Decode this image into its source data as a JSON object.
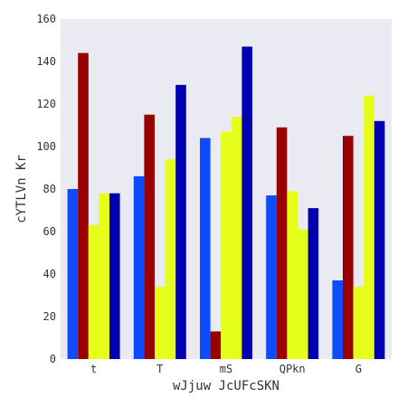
{
  "chart_data": {
    "type": "bar",
    "title": "",
    "xlabel": "wJjuw JcUFcSKN",
    "ylabel": "cYTLVn Kr",
    "ylim": [
      0,
      160
    ],
    "yticks": [
      0,
      20,
      40,
      60,
      80,
      100,
      120,
      140,
      160
    ],
    "grid": false,
    "legend": "none",
    "background_color": "#eaeaf2",
    "categories": [
      "t",
      "T",
      "mS",
      "QPkn",
      "G"
    ],
    "series": [
      {
        "color": "#0d4bff",
        "values": [
          80,
          86,
          104,
          77,
          37
        ]
      },
      {
        "color": "#990000",
        "values": [
          144,
          115,
          13,
          109,
          105
        ]
      },
      {
        "color": "#e6ff1a",
        "values": [
          63,
          34,
          107,
          79,
          34
        ]
      },
      {
        "color": "#e6ff1a",
        "values": [
          78,
          94,
          114,
          61,
          124
        ]
      },
      {
        "color": "#0000b3",
        "values": [
          78,
          129,
          147,
          71,
          112
        ]
      }
    ]
  }
}
